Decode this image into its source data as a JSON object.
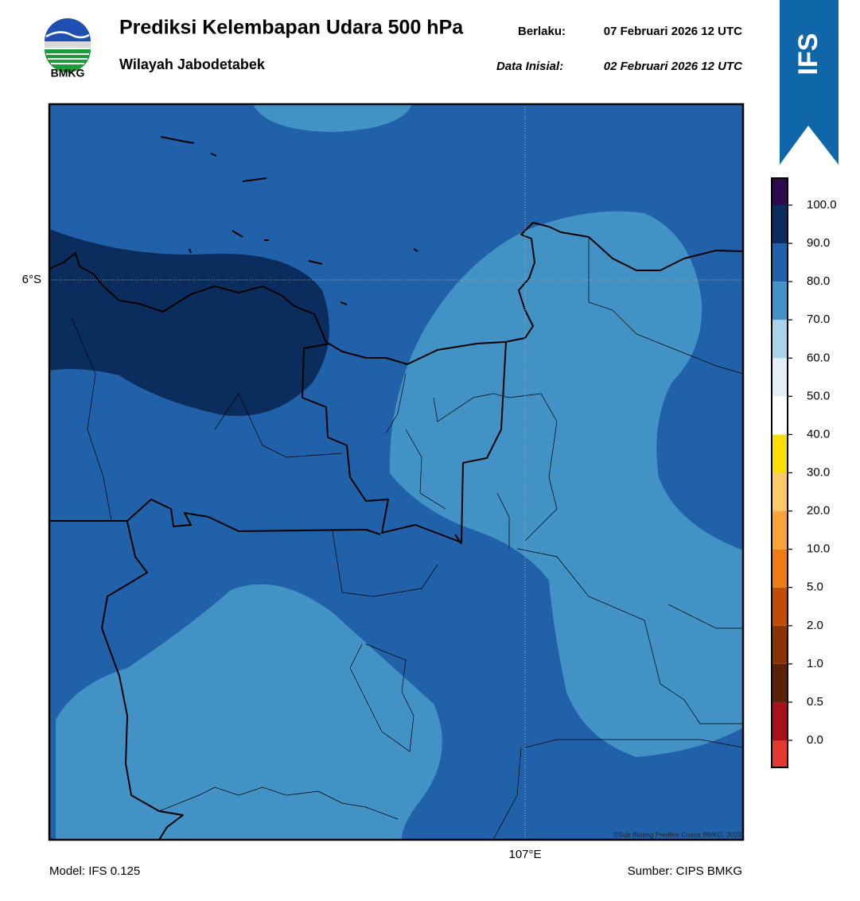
{
  "header": {
    "logo_text": "BMKG",
    "title": "Prediksi Kelembapan Udara 500 hPa",
    "subtitle": "Wilayah Jabodetabek",
    "valid_label": "Berlaku:",
    "valid": "07 Februari 2026 12 UTC",
    "init_label": "Data Inisial:",
    "init": "02 Februari 2026 12 UTC",
    "model_badge": "IFS"
  },
  "map": {
    "lat_label": "6°S",
    "lon_label": "107°E",
    "credit": "©Sub Bidang Prediksi Cuaca BMKG, 2023"
  },
  "colorbar": {
    "ticks": [
      {
        "value": 0,
        "label": "0.0"
      },
      {
        "value": 0.5,
        "label": "0.5"
      },
      {
        "value": 1,
        "label": "1.0"
      },
      {
        "value": 2,
        "label": "2.0"
      },
      {
        "value": 5,
        "label": "5.0"
      },
      {
        "value": 10,
        "label": "10.0"
      },
      {
        "value": 20,
        "label": "20.0"
      },
      {
        "value": 30,
        "label": "30.0"
      },
      {
        "value": 40,
        "label": "40.0"
      },
      {
        "value": 50,
        "label": "50.0"
      },
      {
        "value": 60,
        "label": "60.0"
      },
      {
        "value": 70,
        "label": "70.0"
      },
      {
        "value": 80,
        "label": "80.0"
      },
      {
        "value": 90,
        "label": "90.0"
      },
      {
        "value": 100,
        "label": "100.0"
      }
    ],
    "colors": [
      "#e23a30",
      "#a8111b",
      "#5a2208",
      "#8a3406",
      "#c04c06",
      "#ee7b14",
      "#fca43a",
      "#fdca6a",
      "#f7e000",
      "#ffffff",
      "#e4eef8",
      "#a9d3e6",
      "#4292c6",
      "#2161aa",
      "#0a2d5e",
      "#2e0a4f"
    ]
  },
  "footer": {
    "model": "Model: IFS 0.125",
    "source": "Sumber: CIPS BMKG"
  }
}
